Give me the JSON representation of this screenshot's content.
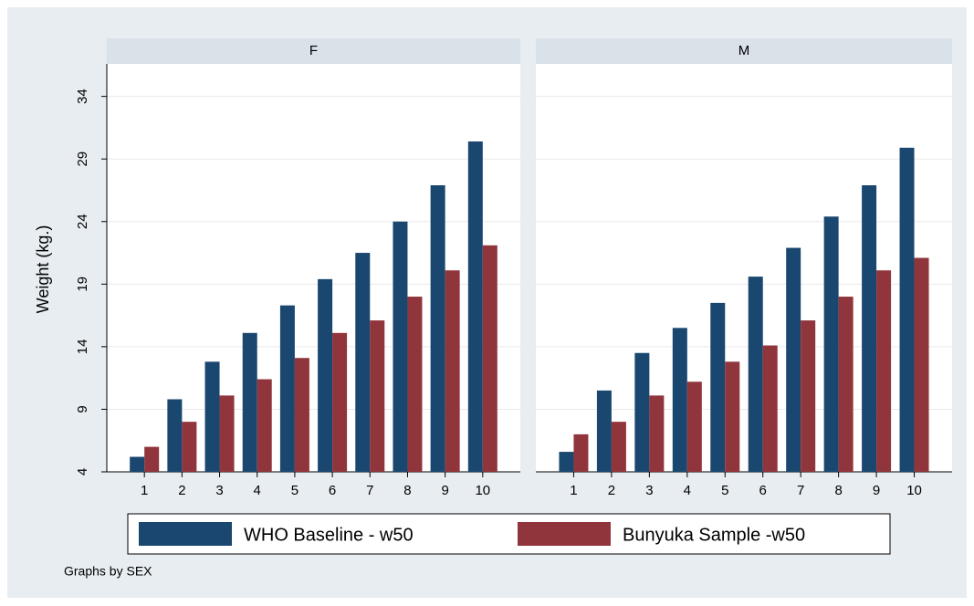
{
  "chart_data": {
    "type": "bar",
    "ylabel": "Weight (kg.)",
    "note": "Graphs by SEX",
    "categories": [
      "1",
      "2",
      "3",
      "4",
      "5",
      "6",
      "7",
      "8",
      "9",
      "10"
    ],
    "ylim": [
      4,
      36.6
    ],
    "yticks": [
      4,
      9,
      14,
      19,
      24,
      29,
      34
    ],
    "grid": true,
    "series": [
      {
        "name": "WHO Baseline - w50",
        "color": "#1a476f"
      },
      {
        "name": "Bunyuka Sample -w50",
        "color": "#90353b"
      }
    ],
    "panels": [
      {
        "title": "F",
        "series": [
          {
            "values": [
              5.2,
              9.8,
              12.8,
              15.1,
              17.3,
              19.4,
              21.5,
              24.0,
              26.9,
              30.4
            ]
          },
          {
            "values": [
              6.0,
              8.0,
              10.1,
              11.4,
              13.1,
              15.1,
              16.1,
              18.0,
              20.1,
              22.1
            ]
          }
        ]
      },
      {
        "title": "M",
        "series": [
          {
            "values": [
              5.6,
              10.5,
              13.5,
              15.5,
              17.5,
              19.6,
              21.9,
              24.4,
              26.9,
              29.9
            ]
          },
          {
            "values": [
              7.0,
              8.0,
              10.1,
              11.2,
              12.8,
              14.1,
              16.1,
              18.0,
              20.1,
              21.1
            ]
          }
        ]
      }
    ]
  }
}
